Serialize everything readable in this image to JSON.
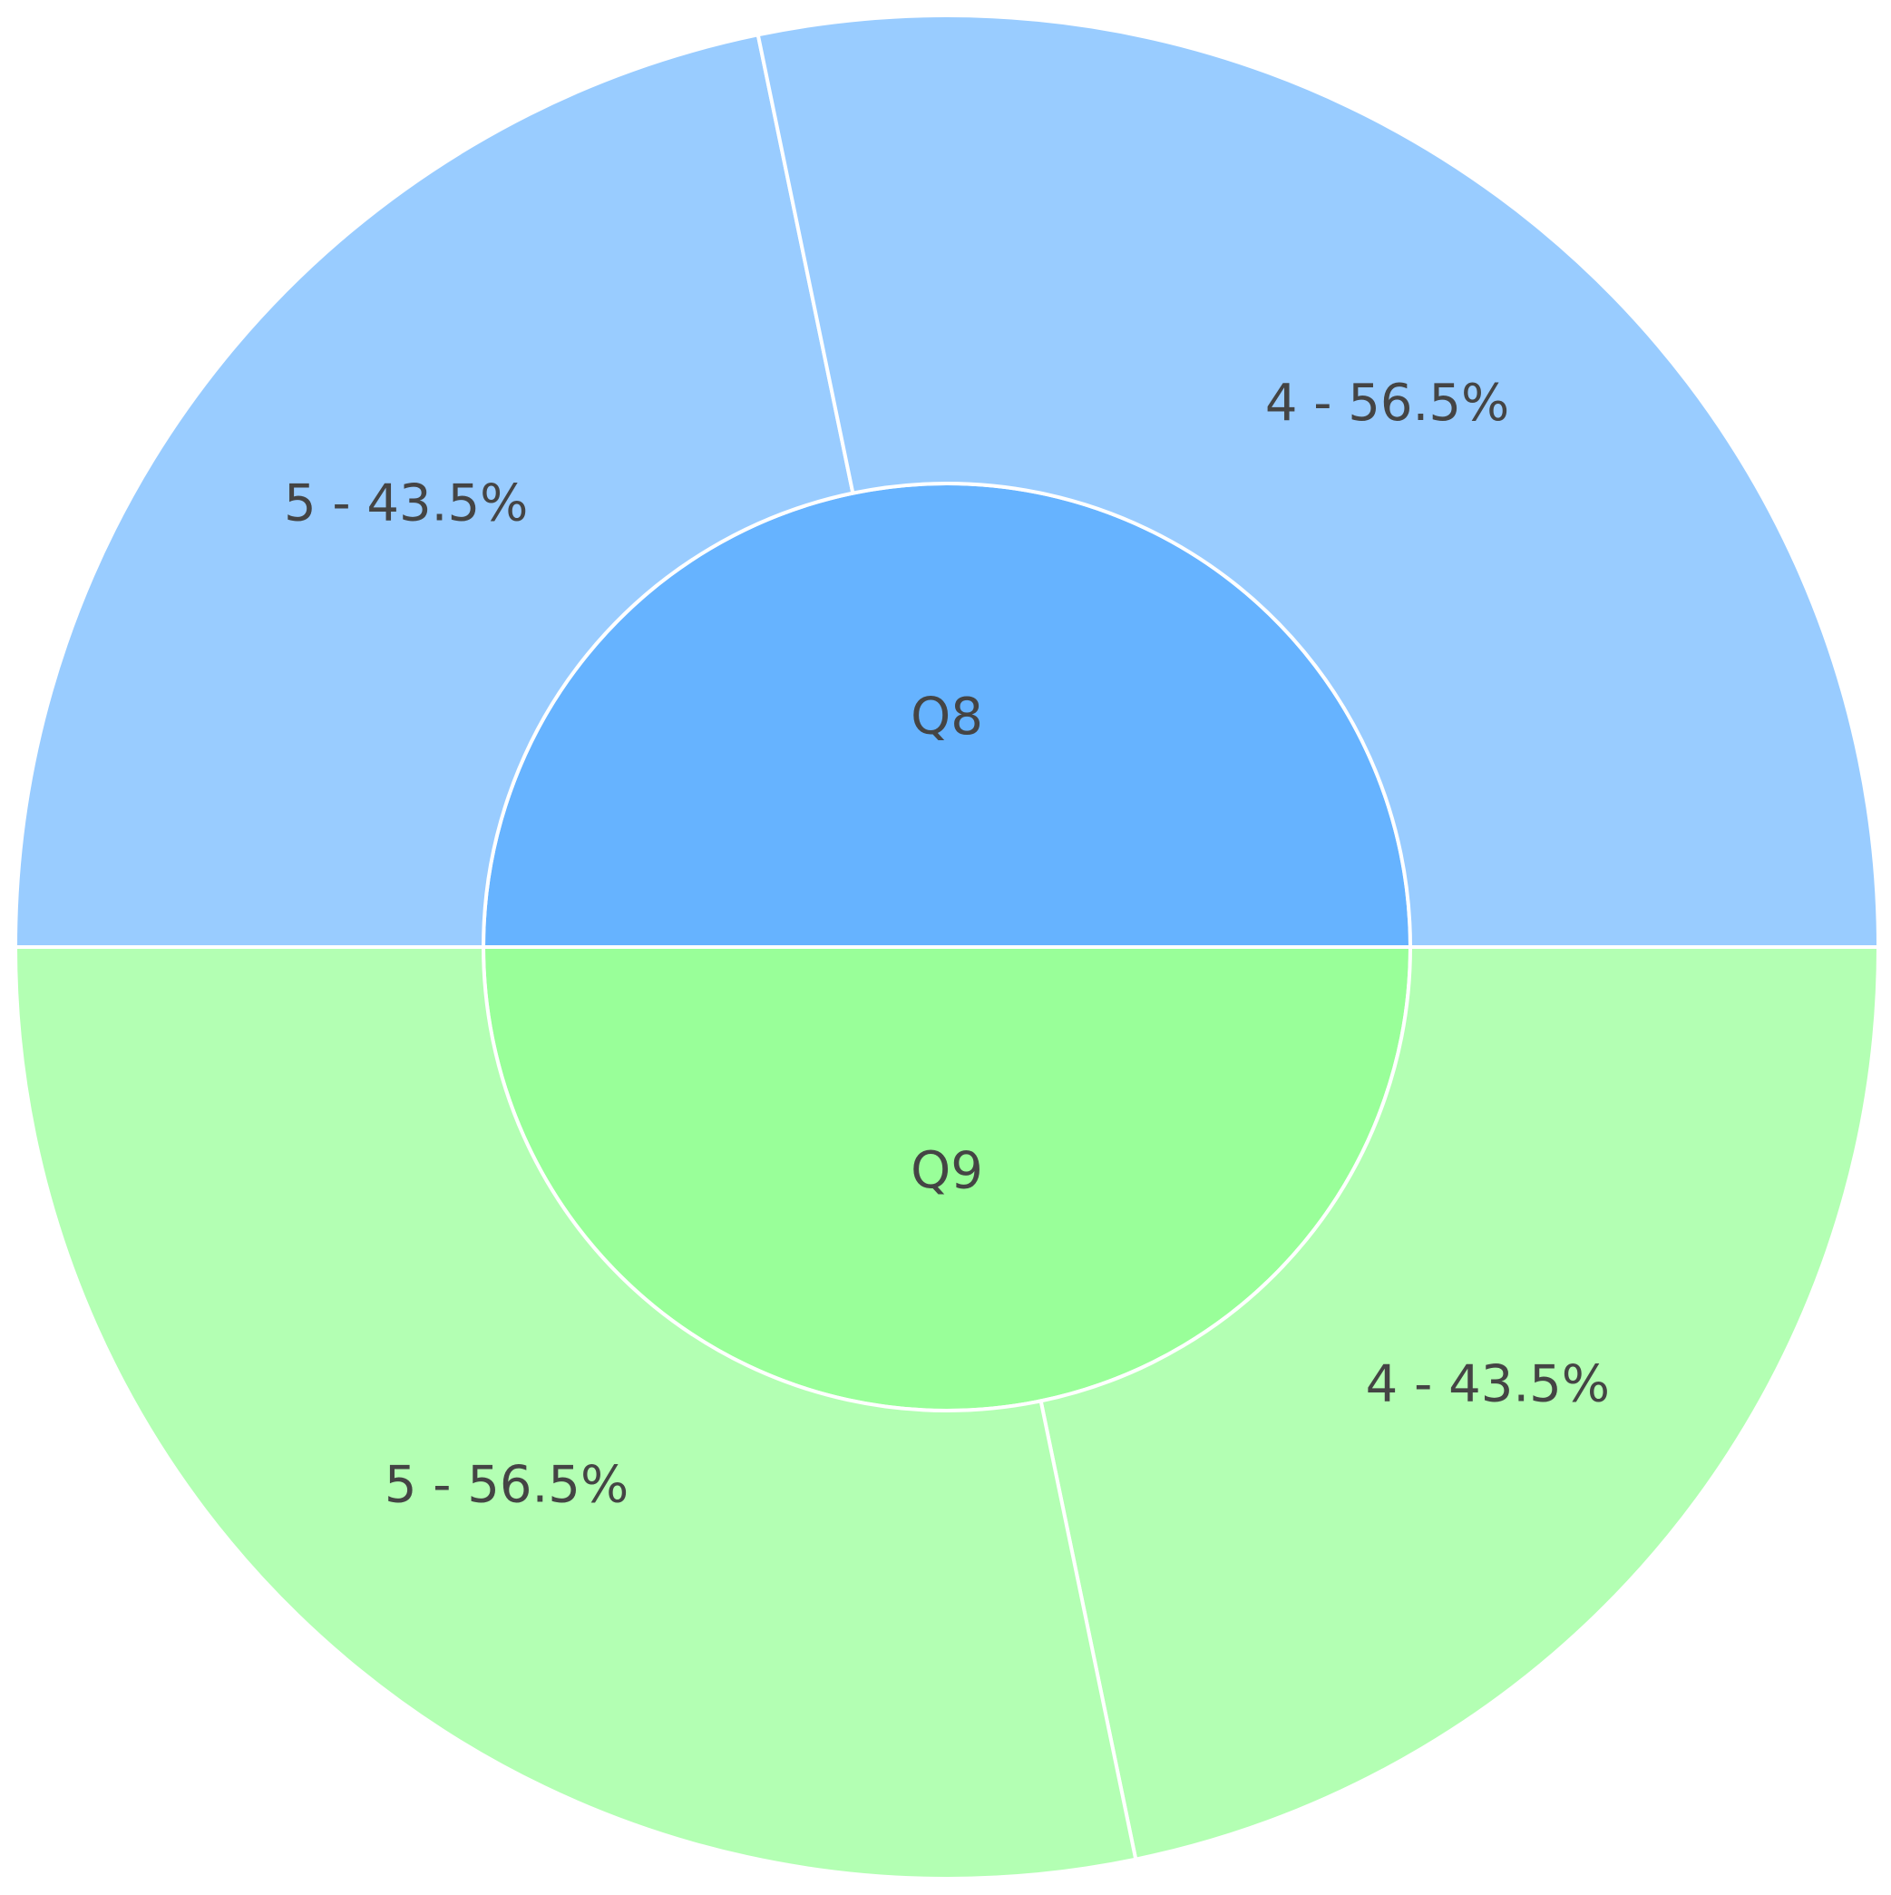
{
  "chart_data": {
    "type": "sunburst",
    "series": [
      {
        "name": "Q8",
        "color": "#66b3ff",
        "child_color": "#99ccff",
        "values": [
          43.5,
          56.5
        ],
        "value_labels": [
          "5 - 43.5%",
          "4 - 56.5%"
        ]
      },
      {
        "name": "Q9",
        "color": "#99ff99",
        "child_color": "#b3ffb3",
        "values": [
          43.5,
          56.5
        ],
        "value_labels": [
          "4 - 43.5%",
          "5 - 56.5%"
        ]
      }
    ]
  }
}
